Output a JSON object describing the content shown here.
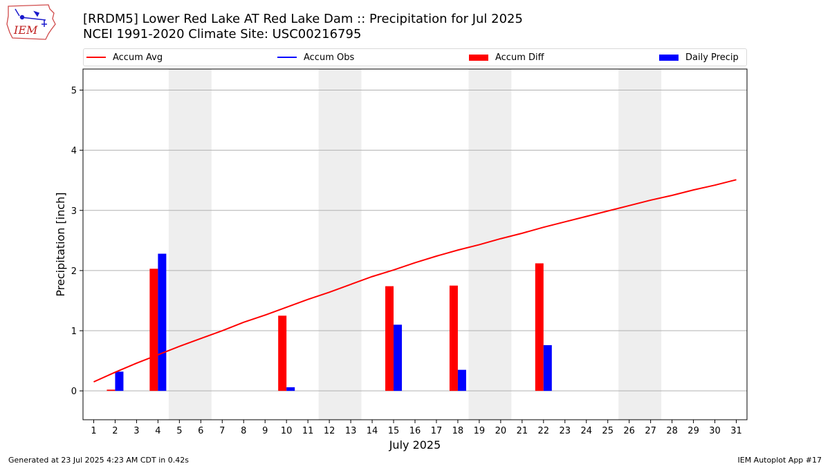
{
  "logo": {
    "icon": "iem-weather-station-logo",
    "text": "IEM"
  },
  "title_line1": "[RRDM5] Lower Red Lake  AT Red Lake Dam :: Precipitation for Jul 2025",
  "title_line2": "NCEI 1991-2020 Climate Site: USC00216795",
  "legend": [
    {
      "label": "Accum Avg",
      "kind": "line",
      "color": "#ff0000"
    },
    {
      "label": "Accum Obs",
      "kind": "line",
      "color": "#0000ff"
    },
    {
      "label": "Accum Diff",
      "kind": "box",
      "color": "#ff0000"
    },
    {
      "label": "Daily Precip",
      "kind": "box",
      "color": "#0000ff"
    }
  ],
  "footer_left": "Generated at 23 Jul 2025 4:23 AM CDT in 0.42s",
  "footer_right": "IEM Autoplot App #17",
  "chart_data": {
    "type": "bar",
    "xlabel": "July 2025",
    "ylabel": "Precipitation [inch]",
    "x": [
      1,
      2,
      3,
      4,
      5,
      6,
      7,
      8,
      9,
      10,
      11,
      12,
      13,
      14,
      15,
      16,
      17,
      18,
      19,
      20,
      21,
      22,
      23,
      24,
      25,
      26,
      27,
      28,
      29,
      30,
      31
    ],
    "xlim": [
      0.5,
      31.5
    ],
    "ylim": [
      -0.48,
      5.35
    ],
    "yticks": [
      0,
      1,
      2,
      3,
      4,
      5
    ],
    "grid": "horizontal",
    "weekend_shading": [
      [
        5,
        6
      ],
      [
        12,
        13
      ],
      [
        19,
        20
      ],
      [
        26,
        27
      ]
    ],
    "series": [
      {
        "name": "Accum Avg",
        "type": "line",
        "color": "#ff0000",
        "x": [
          1,
          2,
          3,
          4,
          5,
          6,
          7,
          8,
          9,
          10,
          11,
          12,
          13,
          14,
          15,
          16,
          17,
          18,
          19,
          20,
          21,
          22,
          23,
          24,
          25,
          26,
          27,
          28,
          29,
          30,
          31
        ],
        "values": [
          0.15,
          0.31,
          0.46,
          0.6,
          0.74,
          0.87,
          1.0,
          1.14,
          1.26,
          1.39,
          1.52,
          1.64,
          1.77,
          1.9,
          2.01,
          2.13,
          2.24,
          2.34,
          2.43,
          2.53,
          2.62,
          2.72,
          2.81,
          2.9,
          2.99,
          3.08,
          3.17,
          3.25,
          3.34,
          3.42,
          3.51
        ]
      },
      {
        "name": "Accum Diff",
        "type": "bar",
        "color": "#ff0000",
        "x": [
          2,
          4,
          10,
          15,
          18,
          22
        ],
        "values": [
          0.02,
          2.03,
          1.25,
          1.74,
          1.75,
          2.12
        ]
      },
      {
        "name": "Daily Precip",
        "type": "bar",
        "color": "#0000ff",
        "x": [
          2,
          4,
          10,
          15,
          18,
          22
        ],
        "values": [
          0.32,
          2.28,
          0.06,
          1.1,
          0.35,
          0.76
        ]
      }
    ]
  }
}
